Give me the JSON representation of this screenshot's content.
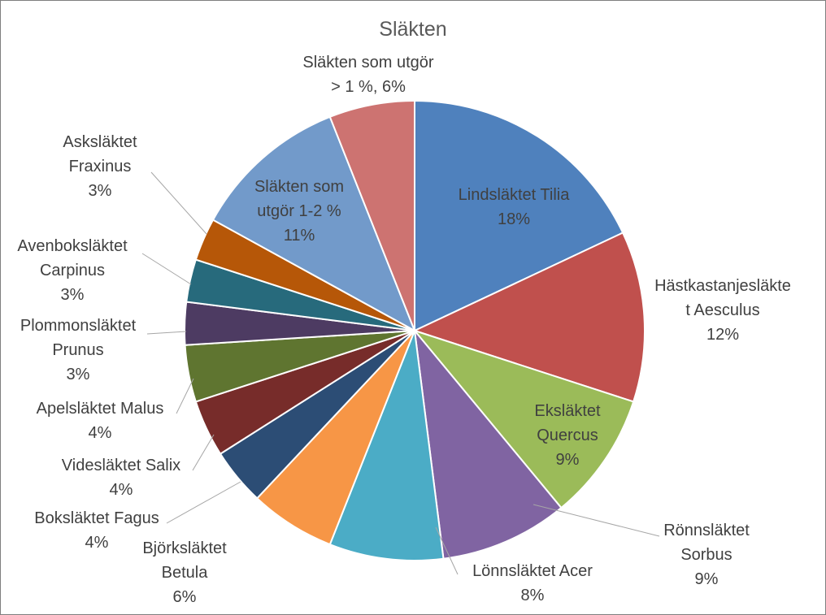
{
  "chart_data": {
    "type": "pie",
    "title": "Släkten",
    "series": [
      {
        "values": [
          18,
          12,
          9,
          9,
          8,
          6,
          4,
          4,
          4,
          3,
          3,
          3,
          11,
          6
        ]
      }
    ],
    "slices": [
      {
        "name_lines": [
          "Lindsläktet Tilia"
        ],
        "percent_label": "18%",
        "value": 18,
        "color": "#4F81BD"
      },
      {
        "name_lines": [
          "Hästkastanjesläkte",
          "t Aesculus"
        ],
        "percent_label": "12%",
        "value": 12,
        "color": "#C0504D"
      },
      {
        "name_lines": [
          "Eksläktet",
          "Quercus"
        ],
        "percent_label": "9%",
        "value": 9,
        "color": "#9BBB59"
      },
      {
        "name_lines": [
          "Rönnsläktet",
          "Sorbus"
        ],
        "percent_label": "9%",
        "value": 9,
        "color": "#8064A2"
      },
      {
        "name_lines": [
          "Lönnsläktet Acer"
        ],
        "percent_label": "8%",
        "value": 8,
        "color": "#4BACC6"
      },
      {
        "name_lines": [
          "Björksläktet",
          "Betula"
        ],
        "percent_label": "6%",
        "value": 6,
        "color": "#F79646"
      },
      {
        "name_lines": [
          "Boksläktet Fagus"
        ],
        "percent_label": "4%",
        "value": 4,
        "color": "#2C4D75"
      },
      {
        "name_lines": [
          "Videsläktet Salix"
        ],
        "percent_label": "4%",
        "value": 4,
        "color": "#772C2A"
      },
      {
        "name_lines": [
          "Apelsläktet Malus"
        ],
        "percent_label": "4%",
        "value": 4,
        "color": "#5F7530"
      },
      {
        "name_lines": [
          "Plommonsläktet",
          "Prunus"
        ],
        "percent_label": "3%",
        "value": 3,
        "color": "#4D3B62"
      },
      {
        "name_lines": [
          "Avenboksläktet",
          "Carpinus"
        ],
        "percent_label": "3%",
        "value": 3,
        "color": "#276A7C"
      },
      {
        "name_lines": [
          "Asksläktet",
          "Fraxinus"
        ],
        "percent_label": "3%",
        "value": 3,
        "color": "#B65708"
      },
      {
        "name_lines": [
          "Släkten som",
          "utgör 1-2 %"
        ],
        "percent_label": "11%",
        "value": 11,
        "color": "#729ACA"
      },
      {
        "name_lines": [
          "Släkten som utgör",
          "> 1 %, 6%"
        ],
        "percent_label": "",
        "value": 6,
        "color": "#CD7371"
      }
    ],
    "legend": "none",
    "data_labels": "category name and percentage"
  }
}
